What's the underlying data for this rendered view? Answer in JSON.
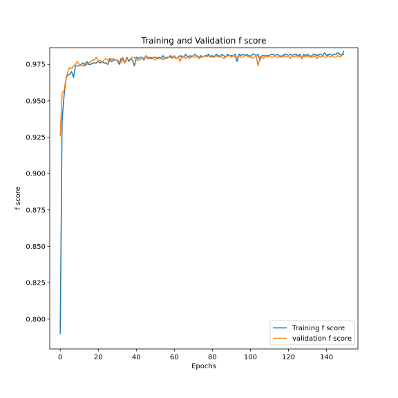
{
  "chart_data": {
    "type": "line",
    "title": "Training and Validation f score",
    "xlabel": "Epochs",
    "ylabel": "f score",
    "xlim": [
      -5.5,
      156.5
    ],
    "ylim": [
      0.7795,
      0.9865
    ],
    "xticks": [
      0,
      20,
      40,
      60,
      80,
      100,
      120,
      140
    ],
    "yticks": [
      0.8,
      0.825,
      0.85,
      0.875,
      0.9,
      0.925,
      0.95,
      0.975
    ],
    "ytick_labels": [
      "0.800",
      "0.825",
      "0.850",
      "0.875",
      "0.900",
      "0.925",
      "0.950",
      "0.975"
    ],
    "grid": false,
    "legend_position": "lower right",
    "series": [
      {
        "name": "Training f score",
        "color": "#1f77b4",
        "values": [
          0.79,
          0.937,
          0.953,
          0.965,
          0.968,
          0.968,
          0.97,
          0.966,
          0.974,
          0.974,
          0.974,
          0.975,
          0.976,
          0.974,
          0.977,
          0.975,
          0.975,
          0.976,
          0.976,
          0.976,
          0.977,
          0.976,
          0.977,
          0.976,
          0.976,
          0.975,
          0.979,
          0.977,
          0.978,
          0.978,
          0.978,
          0.975,
          0.979,
          0.978,
          0.976,
          0.98,
          0.977,
          0.979,
          0.978,
          0.974,
          0.98,
          0.979,
          0.98,
          0.98,
          0.978,
          0.981,
          0.979,
          0.98,
          0.979,
          0.98,
          0.98,
          0.979,
          0.98,
          0.979,
          0.981,
          0.979,
          0.98,
          0.98,
          0.981,
          0.98,
          0.98,
          0.979,
          0.98,
          0.981,
          0.98,
          0.98,
          0.982,
          0.98,
          0.981,
          0.98,
          0.981,
          0.982,
          0.98,
          0.98,
          0.981,
          0.98,
          0.981,
          0.981,
          0.982,
          0.98,
          0.981,
          0.98,
          0.982,
          0.981,
          0.98,
          0.982,
          0.981,
          0.98,
          0.982,
          0.981,
          0.981,
          0.981,
          0.982,
          0.977,
          0.982,
          0.981,
          0.982,
          0.981,
          0.982,
          0.981,
          0.98,
          0.982,
          0.982,
          0.981,
          0.982,
          0.978,
          0.981,
          0.981,
          0.981,
          0.981,
          0.981,
          0.982,
          0.982,
          0.981,
          0.982,
          0.981,
          0.98,
          0.981,
          0.982,
          0.982,
          0.981,
          0.982,
          0.981,
          0.982,
          0.982,
          0.981,
          0.982,
          0.979,
          0.982,
          0.981,
          0.982,
          0.981,
          0.98,
          0.982,
          0.982,
          0.981,
          0.982,
          0.982,
          0.981,
          0.983,
          0.981,
          0.982,
          0.982,
          0.981,
          0.982,
          0.982,
          0.983,
          0.982,
          0.981,
          0.984
        ]
      },
      {
        "name": "validation f score",
        "color": "#ff7f0e",
        "values": [
          0.926,
          0.955,
          0.957,
          0.965,
          0.97,
          0.973,
          0.972,
          0.974,
          0.975,
          0.977,
          0.975,
          0.974,
          0.974,
          0.976,
          0.975,
          0.976,
          0.977,
          0.978,
          0.978,
          0.98,
          0.977,
          0.978,
          0.976,
          0.978,
          0.979,
          0.978,
          0.977,
          0.979,
          0.979,
          0.978,
          0.978,
          0.977,
          0.976,
          0.98,
          0.976,
          0.979,
          0.978,
          0.979,
          0.98,
          0.98,
          0.978,
          0.978,
          0.978,
          0.98,
          0.979,
          0.981,
          0.98,
          0.979,
          0.98,
          0.979,
          0.978,
          0.98,
          0.979,
          0.98,
          0.978,
          0.98,
          0.979,
          0.98,
          0.98,
          0.979,
          0.981,
          0.979,
          0.98,
          0.977,
          0.981,
          0.98,
          0.979,
          0.98,
          0.979,
          0.981,
          0.98,
          0.98,
          0.981,
          0.979,
          0.98,
          0.98,
          0.981,
          0.98,
          0.981,
          0.981,
          0.98,
          0.98,
          0.981,
          0.98,
          0.981,
          0.98,
          0.979,
          0.98,
          0.981,
          0.981,
          0.98,
          0.981,
          0.98,
          0.98,
          0.981,
          0.98,
          0.98,
          0.981,
          0.981,
          0.98,
          0.981,
          0.979,
          0.98,
          0.981,
          0.974,
          0.98,
          0.981,
          0.979,
          0.981,
          0.98,
          0.981,
          0.98,
          0.98,
          0.981,
          0.98,
          0.98,
          0.981,
          0.98,
          0.981,
          0.98,
          0.981,
          0.979,
          0.981,
          0.98,
          0.981,
          0.98,
          0.981,
          0.979,
          0.981,
          0.98,
          0.981,
          0.98,
          0.981,
          0.98,
          0.981,
          0.979,
          0.981,
          0.98,
          0.981,
          0.98,
          0.98,
          0.981,
          0.98,
          0.981,
          0.98,
          0.98,
          0.981,
          0.98,
          0.981,
          0.982
        ]
      }
    ]
  }
}
